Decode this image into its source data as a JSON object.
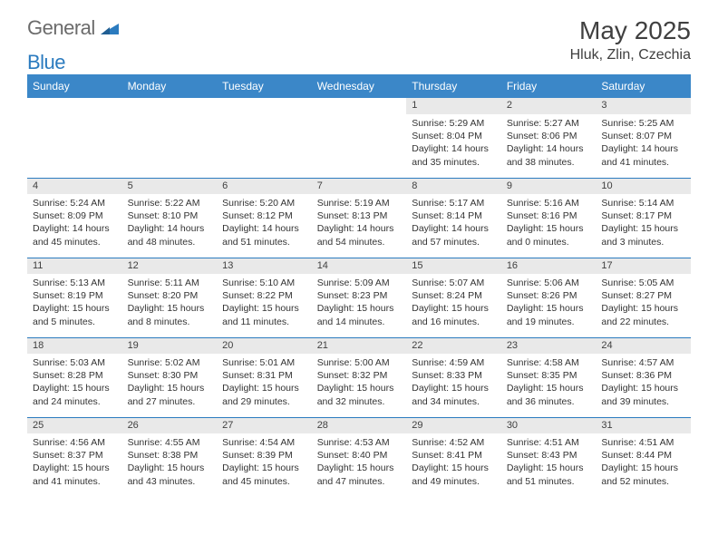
{
  "brand": {
    "part1": "General",
    "part2": "Blue",
    "icon_color": "#2b7bbf"
  },
  "title": "May 2025",
  "location": "Hluk, Zlin, Czechia",
  "colors": {
    "header_bg": "#3b87c8",
    "header_text": "#ffffff",
    "daynum_bg": "#e9e9e9",
    "rule": "#2b7bbf",
    "text": "#333333"
  },
  "weekdays": [
    "Sunday",
    "Monday",
    "Tuesday",
    "Wednesday",
    "Thursday",
    "Friday",
    "Saturday"
  ],
  "weeks": [
    [
      null,
      null,
      null,
      null,
      {
        "n": "1",
        "sr": "5:29 AM",
        "ss": "8:04 PM",
        "dl": "14 hours and 35 minutes."
      },
      {
        "n": "2",
        "sr": "5:27 AM",
        "ss": "8:06 PM",
        "dl": "14 hours and 38 minutes."
      },
      {
        "n": "3",
        "sr": "5:25 AM",
        "ss": "8:07 PM",
        "dl": "14 hours and 41 minutes."
      }
    ],
    [
      {
        "n": "4",
        "sr": "5:24 AM",
        "ss": "8:09 PM",
        "dl": "14 hours and 45 minutes."
      },
      {
        "n": "5",
        "sr": "5:22 AM",
        "ss": "8:10 PM",
        "dl": "14 hours and 48 minutes."
      },
      {
        "n": "6",
        "sr": "5:20 AM",
        "ss": "8:12 PM",
        "dl": "14 hours and 51 minutes."
      },
      {
        "n": "7",
        "sr": "5:19 AM",
        "ss": "8:13 PM",
        "dl": "14 hours and 54 minutes."
      },
      {
        "n": "8",
        "sr": "5:17 AM",
        "ss": "8:14 PM",
        "dl": "14 hours and 57 minutes."
      },
      {
        "n": "9",
        "sr": "5:16 AM",
        "ss": "8:16 PM",
        "dl": "15 hours and 0 minutes."
      },
      {
        "n": "10",
        "sr": "5:14 AM",
        "ss": "8:17 PM",
        "dl": "15 hours and 3 minutes."
      }
    ],
    [
      {
        "n": "11",
        "sr": "5:13 AM",
        "ss": "8:19 PM",
        "dl": "15 hours and 5 minutes."
      },
      {
        "n": "12",
        "sr": "5:11 AM",
        "ss": "8:20 PM",
        "dl": "15 hours and 8 minutes."
      },
      {
        "n": "13",
        "sr": "5:10 AM",
        "ss": "8:22 PM",
        "dl": "15 hours and 11 minutes."
      },
      {
        "n": "14",
        "sr": "5:09 AM",
        "ss": "8:23 PM",
        "dl": "15 hours and 14 minutes."
      },
      {
        "n": "15",
        "sr": "5:07 AM",
        "ss": "8:24 PM",
        "dl": "15 hours and 16 minutes."
      },
      {
        "n": "16",
        "sr": "5:06 AM",
        "ss": "8:26 PM",
        "dl": "15 hours and 19 minutes."
      },
      {
        "n": "17",
        "sr": "5:05 AM",
        "ss": "8:27 PM",
        "dl": "15 hours and 22 minutes."
      }
    ],
    [
      {
        "n": "18",
        "sr": "5:03 AM",
        "ss": "8:28 PM",
        "dl": "15 hours and 24 minutes."
      },
      {
        "n": "19",
        "sr": "5:02 AM",
        "ss": "8:30 PM",
        "dl": "15 hours and 27 minutes."
      },
      {
        "n": "20",
        "sr": "5:01 AM",
        "ss": "8:31 PM",
        "dl": "15 hours and 29 minutes."
      },
      {
        "n": "21",
        "sr": "5:00 AM",
        "ss": "8:32 PM",
        "dl": "15 hours and 32 minutes."
      },
      {
        "n": "22",
        "sr": "4:59 AM",
        "ss": "8:33 PM",
        "dl": "15 hours and 34 minutes."
      },
      {
        "n": "23",
        "sr": "4:58 AM",
        "ss": "8:35 PM",
        "dl": "15 hours and 36 minutes."
      },
      {
        "n": "24",
        "sr": "4:57 AM",
        "ss": "8:36 PM",
        "dl": "15 hours and 39 minutes."
      }
    ],
    [
      {
        "n": "25",
        "sr": "4:56 AM",
        "ss": "8:37 PM",
        "dl": "15 hours and 41 minutes."
      },
      {
        "n": "26",
        "sr": "4:55 AM",
        "ss": "8:38 PM",
        "dl": "15 hours and 43 minutes."
      },
      {
        "n": "27",
        "sr": "4:54 AM",
        "ss": "8:39 PM",
        "dl": "15 hours and 45 minutes."
      },
      {
        "n": "28",
        "sr": "4:53 AM",
        "ss": "8:40 PM",
        "dl": "15 hours and 47 minutes."
      },
      {
        "n": "29",
        "sr": "4:52 AM",
        "ss": "8:41 PM",
        "dl": "15 hours and 49 minutes."
      },
      {
        "n": "30",
        "sr": "4:51 AM",
        "ss": "8:43 PM",
        "dl": "15 hours and 51 minutes."
      },
      {
        "n": "31",
        "sr": "4:51 AM",
        "ss": "8:44 PM",
        "dl": "15 hours and 52 minutes."
      }
    ]
  ],
  "labels": {
    "sunrise": "Sunrise: ",
    "sunset": "Sunset: ",
    "daylight": "Daylight: "
  }
}
